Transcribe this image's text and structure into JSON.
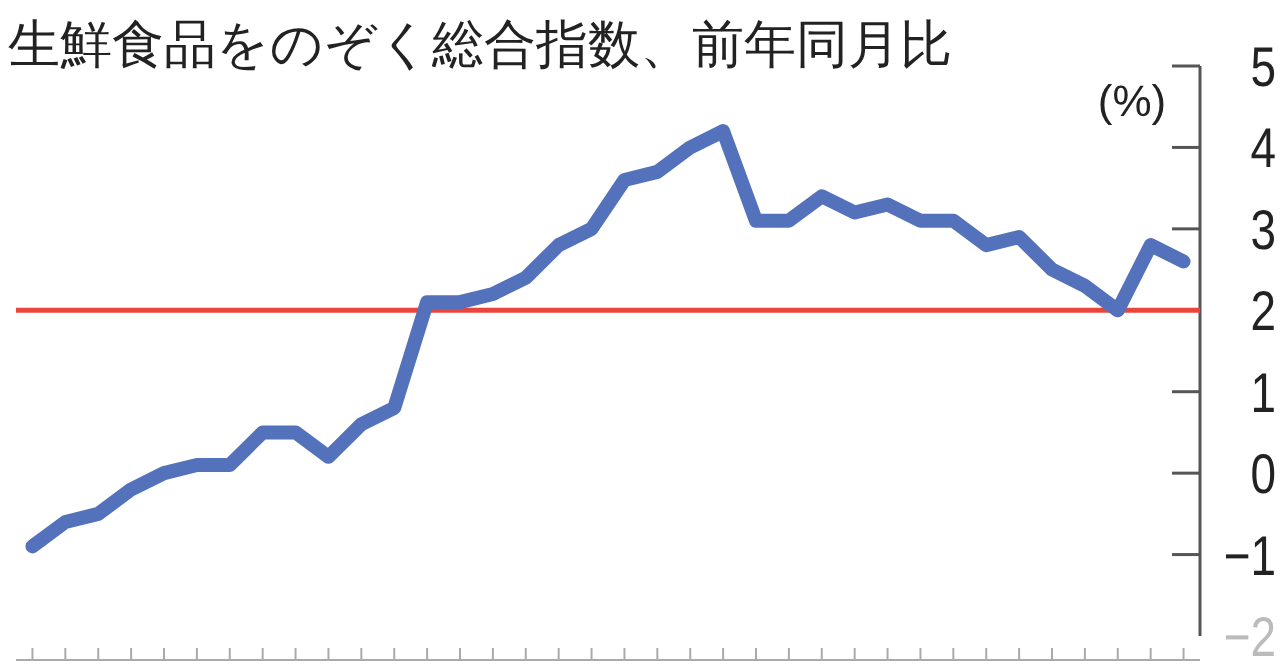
{
  "chart_data": {
    "type": "line",
    "title": "生鮮食品をのぞく総合指数、前年同月比",
    "ylabel": "(%)",
    "categories": [
      null,
      null,
      null,
      null,
      null,
      null,
      null,
      null,
      null,
      null,
      null,
      null,
      null,
      null,
      null,
      null,
      null,
      null,
      null,
      null,
      null,
      null,
      null,
      null,
      null,
      null,
      null,
      null,
      null,
      null,
      null,
      null,
      null,
      null,
      null,
      null
    ],
    "series": [
      {
        "color": "#5372bb",
        "values": [
          -0.9,
          -0.6,
          -0.5,
          -0.2,
          0,
          0.1,
          0.1,
          0.5,
          0.5,
          0.2,
          0.6,
          0.8,
          2.1,
          2.1,
          2.2,
          2.4,
          2.8,
          3.0,
          3.6,
          3.7,
          4.0,
          4.2,
          3.1,
          3.1,
          3.4,
          3.2,
          3.3,
          3.1,
          3.1,
          2.8,
          2.9,
          2.5,
          2.3,
          2.0,
          2.8,
          2.6
        ]
      }
    ],
    "ylim": [
      -2,
      5
    ],
    "yticks": [
      -2,
      -1,
      0,
      1,
      2,
      3,
      4,
      5
    ],
    "ref_lines": [
      {
        "axis": "y",
        "value": 2,
        "color": "#e8463c"
      }
    ],
    "marker": "none",
    "line_style": "solid"
  }
}
